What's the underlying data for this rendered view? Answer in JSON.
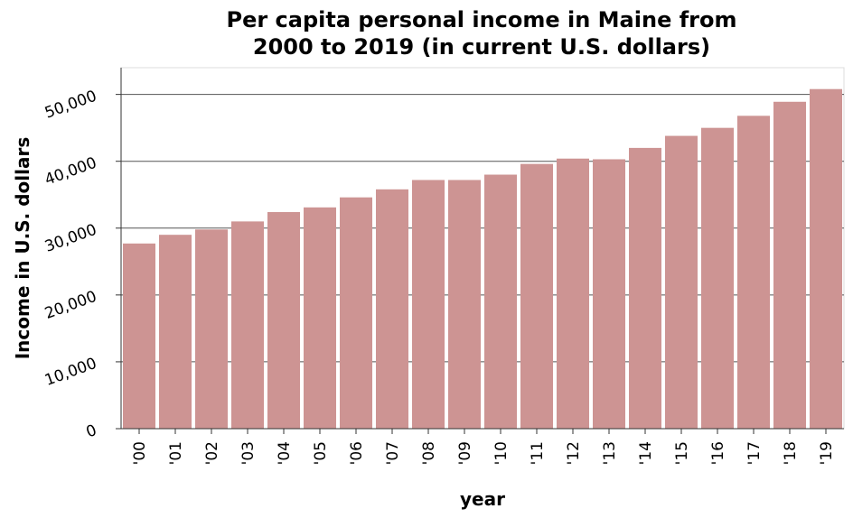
{
  "chart_data": {
    "type": "bar",
    "title_lines": [
      "Per capita personal income in Maine from",
      "2000 to 2019 (in current U.S. dollars)"
    ],
    "xlabel": "year",
    "ylabel": "Income in U.S. dollars",
    "categories": [
      "'00",
      "'01",
      "'02",
      "'03",
      "'04",
      "'05",
      "'06",
      "'07",
      "'08",
      "'09",
      "'10",
      "'11",
      "'12",
      "'13",
      "'14",
      "'15",
      "'16",
      "'17",
      "'18",
      "'19"
    ],
    "values": [
      27700,
      29000,
      29800,
      31000,
      32400,
      33100,
      34600,
      35800,
      37200,
      37200,
      38000,
      39600,
      40400,
      40300,
      42000,
      43800,
      45000,
      46800,
      48900,
      50800
    ],
    "ylim": [
      0,
      54000
    ],
    "yticks": [
      0,
      10000,
      20000,
      30000,
      40000,
      50000
    ],
    "ytick_labels": [
      "0",
      "10,000",
      "20,000",
      "30,000",
      "40,000",
      "50,000"
    ],
    "grid": "horizontal",
    "bar_color": "#cd9493"
  }
}
